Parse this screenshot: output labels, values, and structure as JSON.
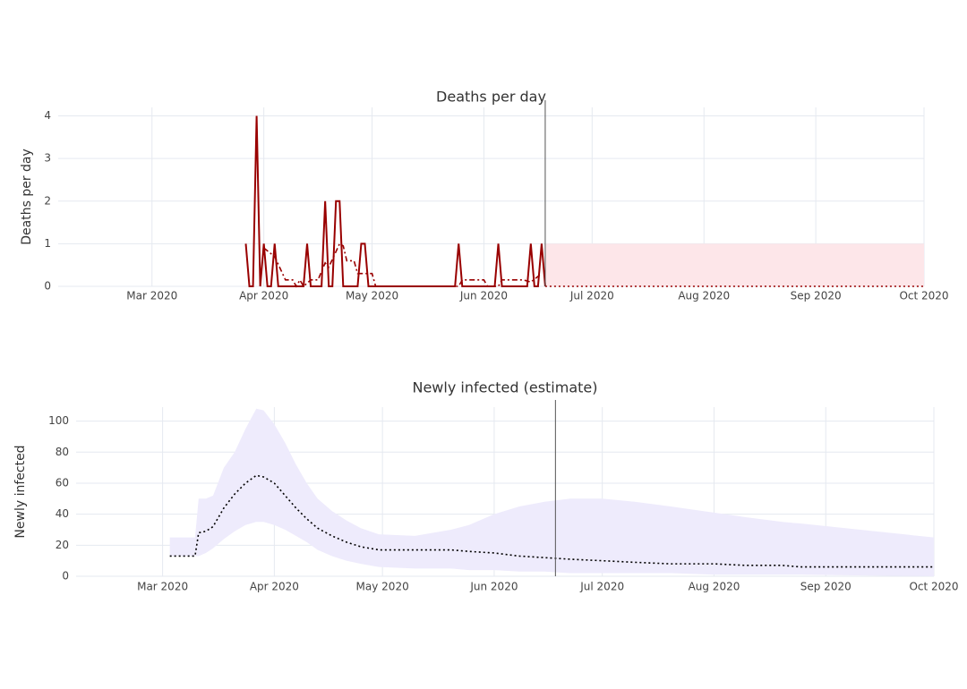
{
  "chart_data": [
    {
      "type": "line",
      "title": "Deaths per day",
      "y_label": "Deaths per day",
      "xlim": [
        "2020-02-04",
        "2020-10-01"
      ],
      "xticks": [
        {
          "value": "2020-03-01",
          "label": "Mar 2020"
        },
        {
          "value": "2020-04-01",
          "label": "Apr 2020"
        },
        {
          "value": "2020-05-01",
          "label": "May 2020"
        },
        {
          "value": "2020-06-01",
          "label": "Jun 2020"
        },
        {
          "value": "2020-07-01",
          "label": "Jul 2020"
        },
        {
          "value": "2020-08-01",
          "label": "Aug 2020"
        },
        {
          "value": "2020-09-01",
          "label": "Sep 2020"
        },
        {
          "value": "2020-10-01",
          "label": "Oct 2020"
        }
      ],
      "ylim": [
        0,
        4.2
      ],
      "yticks": [
        0,
        1,
        2,
        3,
        4
      ],
      "grid": true,
      "vline": "2020-06-18",
      "band": {
        "color": "#fde6e9",
        "x": [
          "2020-06-18",
          "2020-10-01"
        ],
        "lower": [
          0,
          0
        ],
        "upper": [
          1,
          1
        ]
      },
      "series": [
        {
          "color": "#990000",
          "dash": "solid",
          "x": [
            "2020-03-27",
            "2020-03-28",
            "2020-03-29",
            "2020-03-30",
            "2020-03-31",
            "2020-04-01",
            "2020-04-02",
            "2020-04-03",
            "2020-04-04",
            "2020-04-05",
            "2020-04-12",
            "2020-04-13",
            "2020-04-14",
            "2020-04-17",
            "2020-04-18",
            "2020-04-19",
            "2020-04-20",
            "2020-04-21",
            "2020-04-22",
            "2020-04-23",
            "2020-04-27",
            "2020-04-28",
            "2020-04-29",
            "2020-04-30",
            "2020-05-24",
            "2020-05-25",
            "2020-05-26",
            "2020-06-04",
            "2020-06-05",
            "2020-06-06",
            "2020-06-13",
            "2020-06-14",
            "2020-06-15",
            "2020-06-16",
            "2020-06-17",
            "2020-06-18"
          ],
          "values": [
            1,
            0,
            0,
            4,
            0,
            1,
            0,
            0,
            1,
            0,
            0,
            1,
            0,
            0,
            2,
            0,
            0,
            2,
            2,
            0,
            0,
            1,
            1,
            0,
            0,
            1,
            0,
            0,
            1,
            0,
            0,
            1,
            0,
            0,
            1,
            0
          ]
        },
        {
          "color": "#990000",
          "dash": "dashdot",
          "x": [
            "2020-04-01",
            "2020-04-04",
            "2020-04-07",
            "2020-04-09",
            "2020-04-10",
            "2020-04-11",
            "2020-04-12",
            "2020-04-14",
            "2020-04-16",
            "2020-04-18",
            "2020-04-19",
            "2020-04-22",
            "2020-04-23",
            "2020-04-24",
            "2020-04-26",
            "2020-04-27",
            "2020-05-01",
            "2020-05-02",
            "2020-05-25",
            "2020-05-26",
            "2020-06-01",
            "2020-06-02",
            "2020-06-05",
            "2020-06-06",
            "2020-06-12",
            "2020-06-14",
            "2020-06-17"
          ],
          "values": [
            0.9,
            0.7,
            0.15,
            0.15,
            0,
            0.15,
            0,
            0.15,
            0.15,
            0.55,
            0.45,
            1,
            0.95,
            0.6,
            0.6,
            0.3,
            0.3,
            0,
            0,
            0.15,
            0.15,
            0,
            0,
            0.15,
            0.15,
            0.1,
            0.3
          ]
        },
        {
          "color": "#990000",
          "dash": "dot",
          "x": [
            "2020-06-18",
            "2020-10-01"
          ],
          "values": [
            0,
            0
          ]
        }
      ]
    },
    {
      "type": "line",
      "title": "Newly infected (estimate)",
      "y_label": "Newly infected",
      "xlim": [
        "2020-02-06",
        "2020-10-01"
      ],
      "xticks": [
        {
          "value": "2020-03-01",
          "label": "Mar 2020"
        },
        {
          "value": "2020-04-01",
          "label": "Apr 2020"
        },
        {
          "value": "2020-05-01",
          "label": "May 2020"
        },
        {
          "value": "2020-06-01",
          "label": "Jun 2020"
        },
        {
          "value": "2020-07-01",
          "label": "Jul 2020"
        },
        {
          "value": "2020-08-01",
          "label": "Aug 2020"
        },
        {
          "value": "2020-09-01",
          "label": "Sep 2020"
        },
        {
          "value": "2020-10-01",
          "label": "Oct 2020"
        }
      ],
      "ylim": [
        0,
        109
      ],
      "yticks": [
        0,
        20,
        40,
        60,
        80,
        100
      ],
      "grid": true,
      "vline": "2020-06-18",
      "band": {
        "color": "#eeebfc",
        "x": [
          "2020-03-03",
          "2020-03-10",
          "2020-03-11",
          "2020-03-13",
          "2020-03-15",
          "2020-03-18",
          "2020-03-21",
          "2020-03-24",
          "2020-03-27",
          "2020-03-29",
          "2020-04-01",
          "2020-04-04",
          "2020-04-07",
          "2020-04-10",
          "2020-04-13",
          "2020-04-17",
          "2020-04-21",
          "2020-04-25",
          "2020-04-30",
          "2020-05-10",
          "2020-05-20",
          "2020-05-25",
          "2020-06-01",
          "2020-06-08",
          "2020-06-15",
          "2020-06-22",
          "2020-07-01",
          "2020-07-10",
          "2020-07-20",
          "2020-08-01",
          "2020-08-10",
          "2020-08-20",
          "2020-08-25",
          "2020-10-01"
        ],
        "lower": [
          13,
          13,
          13,
          15,
          18,
          24,
          29,
          33,
          35,
          35,
          33,
          30,
          26,
          22,
          17,
          13,
          10,
          8,
          6,
          5,
          5,
          4,
          4,
          3,
          3,
          2,
          2,
          2,
          2,
          1,
          1,
          1,
          1,
          0
        ],
        "upper": [
          25,
          25,
          50,
          50,
          52,
          70,
          80,
          95,
          108,
          107,
          98,
          86,
          72,
          60,
          50,
          42,
          36,
          31,
          27,
          26,
          30,
          33,
          40,
          45,
          48,
          50,
          50,
          48,
          45,
          41,
          38,
          35,
          34,
          25
        ]
      },
      "series": [
        {
          "color": "#000000",
          "dash": "dot",
          "x": [
            "2020-03-03",
            "2020-03-10",
            "2020-03-11",
            "2020-03-13",
            "2020-03-15",
            "2020-03-18",
            "2020-03-21",
            "2020-03-24",
            "2020-03-27",
            "2020-03-29",
            "2020-04-01",
            "2020-04-04",
            "2020-04-07",
            "2020-04-10",
            "2020-04-13",
            "2020-04-17",
            "2020-04-21",
            "2020-04-25",
            "2020-04-30",
            "2020-05-10",
            "2020-05-20",
            "2020-05-25",
            "2020-06-01",
            "2020-06-08",
            "2020-06-15",
            "2020-06-22",
            "2020-07-01",
            "2020-07-10",
            "2020-07-20",
            "2020-08-01",
            "2020-08-10",
            "2020-08-20",
            "2020-08-25",
            "2020-10-01"
          ],
          "values": [
            13,
            13,
            28,
            29,
            32,
            44,
            53,
            60,
            65,
            64,
            60,
            52,
            44,
            37,
            31,
            26,
            22,
            19,
            17,
            17,
            17,
            16,
            15,
            13,
            12,
            11,
            10,
            9,
            8,
            8,
            7,
            7,
            6,
            6
          ]
        }
      ]
    }
  ]
}
